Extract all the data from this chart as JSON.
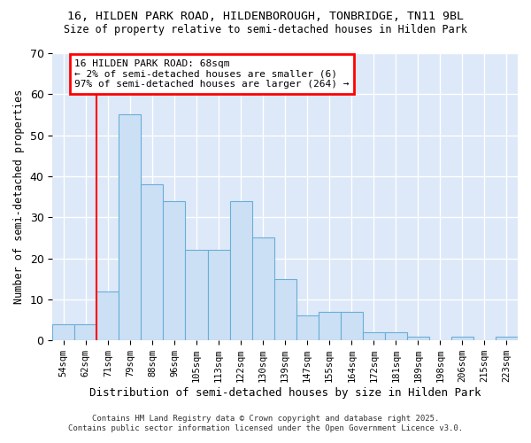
{
  "title1": "16, HILDEN PARK ROAD, HILDENBOROUGH, TONBRIDGE, TN11 9BL",
  "title2": "Size of property relative to semi-detached houses in Hilden Park",
  "xlabel": "Distribution of semi-detached houses by size in Hilden Park",
  "ylabel": "Number of semi-detached properties",
  "categories": [
    "54sqm",
    "62sqm",
    "71sqm",
    "79sqm",
    "88sqm",
    "96sqm",
    "105sqm",
    "113sqm",
    "122sqm",
    "130sqm",
    "139sqm",
    "147sqm",
    "155sqm",
    "164sqm",
    "172sqm",
    "181sqm",
    "189sqm",
    "198sqm",
    "206sqm",
    "215sqm",
    "223sqm"
  ],
  "values": [
    4,
    4,
    12,
    55,
    38,
    34,
    22,
    22,
    34,
    25,
    15,
    6,
    7,
    7,
    2,
    2,
    1,
    0,
    1,
    0,
    1
  ],
  "bar_color": "#cce0f5",
  "bar_edge_color": "#6aaed6",
  "red_line_index": 2.0,
  "annotation_title": "16 HILDEN PARK ROAD: 68sqm",
  "annotation_line1": "← 2% of semi-detached houses are smaller (6)",
  "annotation_line2": "97% of semi-detached houses are larger (264) →",
  "ylim": [
    0,
    70
  ],
  "yticks": [
    0,
    10,
    20,
    30,
    40,
    50,
    60,
    70
  ],
  "footnote1": "Contains HM Land Registry data © Crown copyright and database right 2025.",
  "footnote2": "Contains public sector information licensed under the Open Government Licence v3.0.",
  "fig_bg_color": "#ffffff",
  "ax_bg_color": "#dde8f8",
  "grid_color": "#ffffff"
}
